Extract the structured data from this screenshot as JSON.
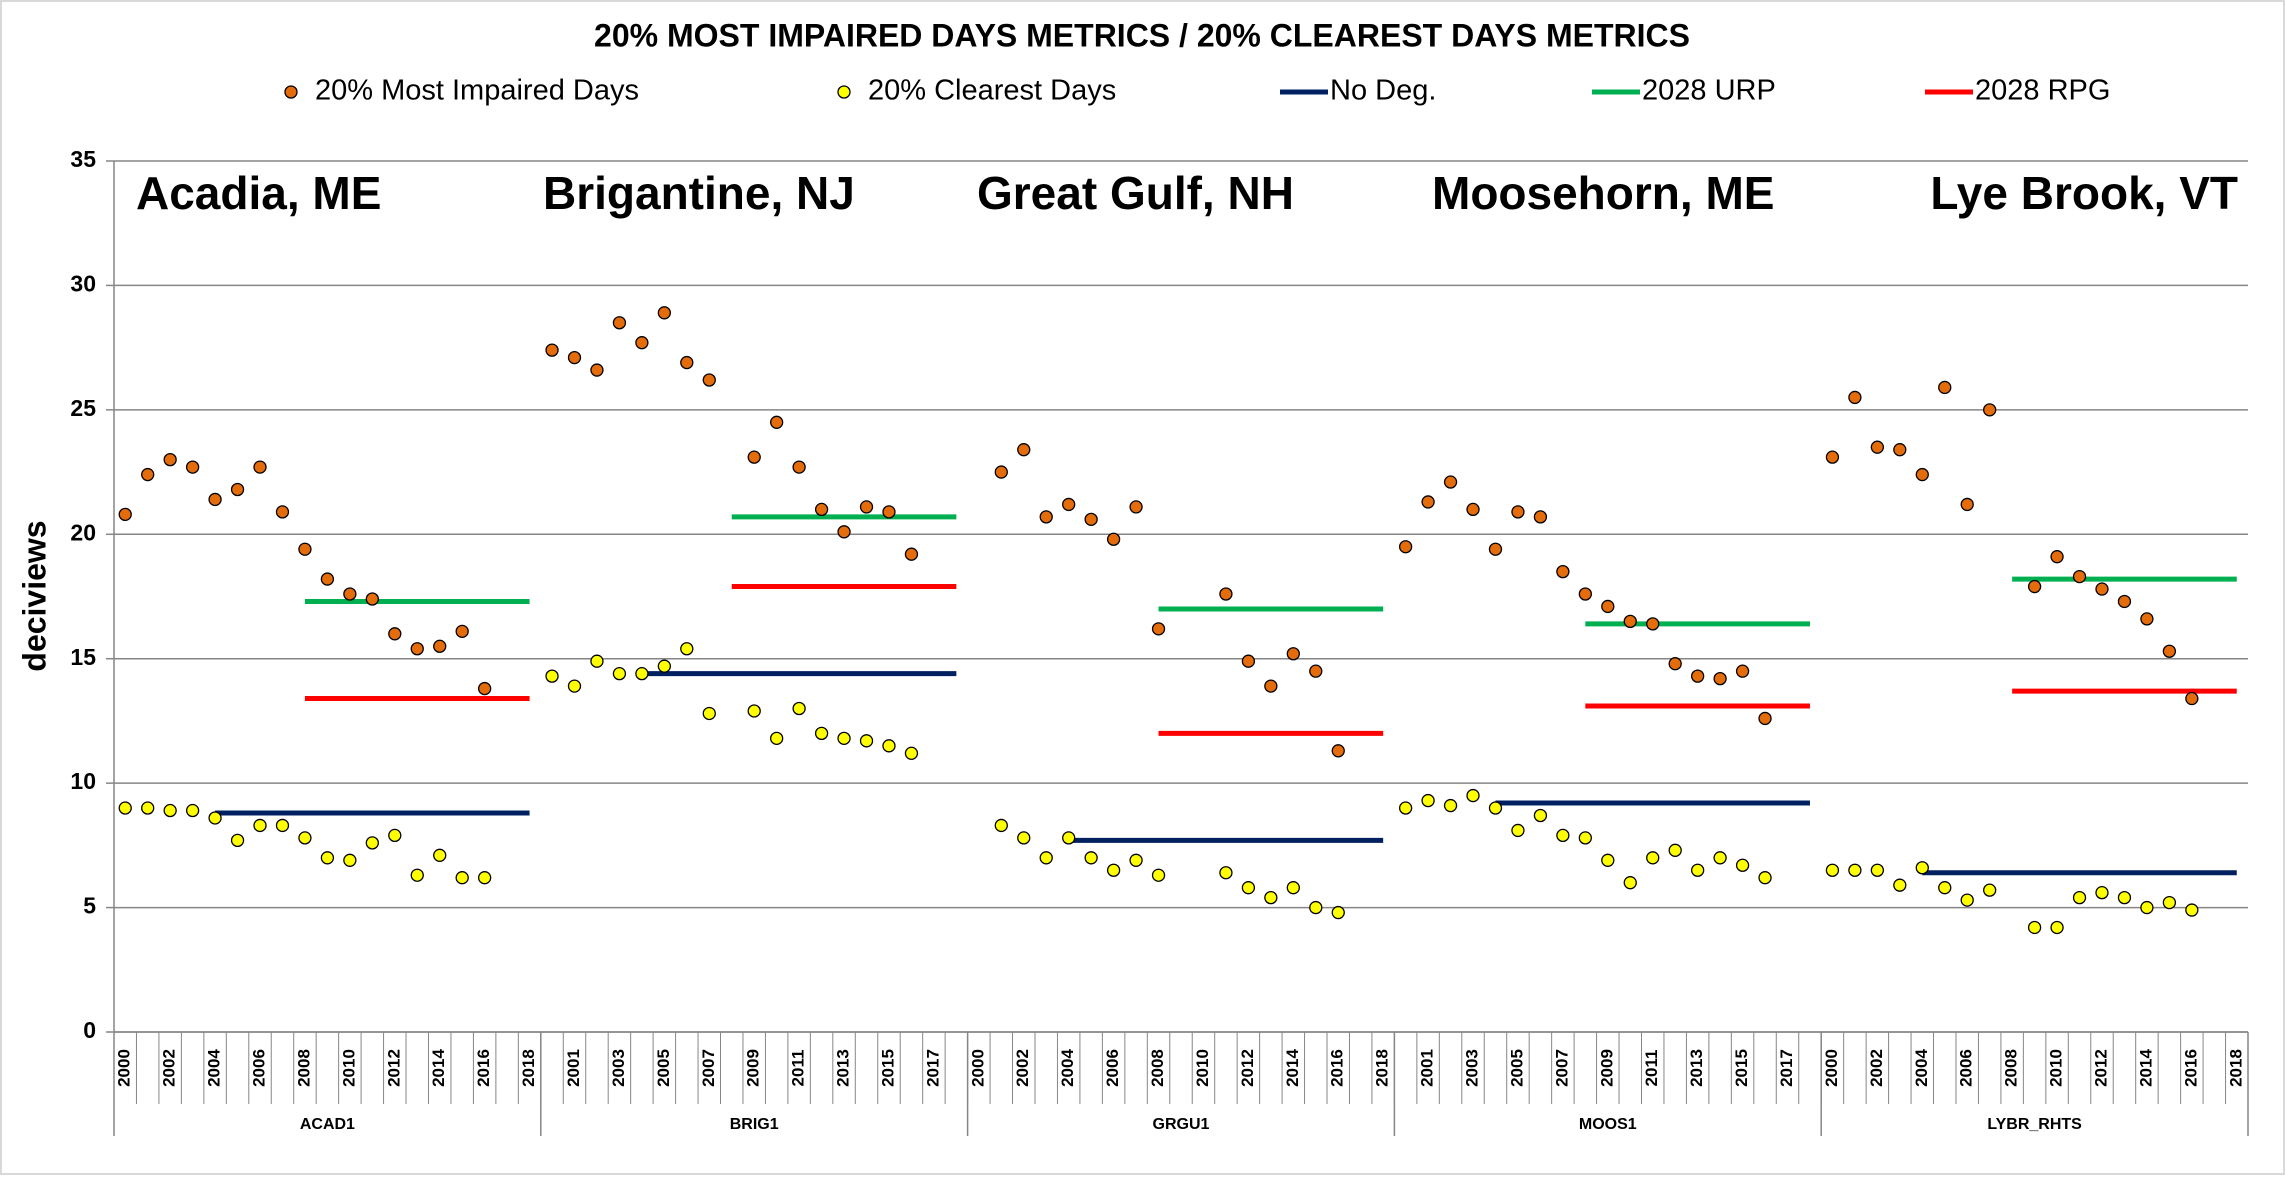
{
  "chart_data": {
    "type": "scatter",
    "title": "20% MOST IMPAIRED DAYS METRICS / 20% CLEAREST DAYS METRICS",
    "y_label": "deciviews",
    "ylim": [
      0,
      35
    ],
    "yticks": [
      0,
      5,
      10,
      15,
      20,
      25,
      30,
      35
    ],
    "grid": true,
    "groups": [
      {
        "name": "ACAD1",
        "site": "Acadia, ME",
        "categories": [
          "2000",
          null,
          "2002",
          null,
          "2004",
          null,
          "2006",
          null,
          "2008",
          null,
          "2010",
          null,
          "2012",
          null,
          "2014",
          null,
          "2016",
          null,
          "2018"
        ]
      },
      {
        "name": "BRIG1",
        "site": "Brigantine, NJ",
        "categories": [
          null,
          "2001",
          null,
          "2003",
          null,
          "2005",
          null,
          "2007",
          null,
          "2009",
          null,
          "2011",
          null,
          "2013",
          null,
          "2015",
          null,
          "2017",
          null
        ]
      },
      {
        "name": "GRGU1",
        "site": "Great Gulf, NH",
        "categories": [
          "2000",
          null,
          "2002",
          null,
          "2004",
          null,
          "2006",
          null,
          "2008",
          null,
          "2010",
          null,
          "2012",
          null,
          "2014",
          null,
          "2016",
          null,
          "2018"
        ]
      },
      {
        "name": "MOOS1",
        "site": "Moosehorn, ME",
        "categories": [
          null,
          "2001",
          null,
          "2003",
          null,
          "2005",
          null,
          "2007",
          null,
          "2009",
          null,
          "2011",
          null,
          "2013",
          null,
          "2015",
          null,
          "2017",
          null
        ]
      },
      {
        "name": "LYBR_RHTS",
        "site": "Lye Brook, VT",
        "categories": [
          "2000",
          null,
          "2002",
          null,
          "2004",
          null,
          "2006",
          null,
          "2008",
          null,
          "2010",
          null,
          "2012",
          null,
          "2014",
          null,
          "2016",
          null,
          "2018"
        ]
      }
    ],
    "series": [
      {
        "name": "20% Most Impaired Days",
        "color": "#e46c0a",
        "style": "marker",
        "values": [
          [
            20.8,
            22.4,
            23.0,
            22.7,
            21.4,
            21.8,
            22.7,
            20.9,
            19.4,
            18.2,
            17.6,
            17.4,
            16.0,
            15.4,
            15.5,
            16.1,
            13.8,
            null,
            null
          ],
          [
            27.4,
            27.1,
            26.6,
            28.5,
            27.7,
            28.9,
            26.9,
            26.2,
            null,
            23.1,
            24.5,
            22.7,
            21.0,
            20.1,
            21.1,
            20.9,
            19.2,
            null,
            null
          ],
          [
            null,
            22.5,
            23.4,
            20.7,
            21.2,
            20.6,
            19.8,
            21.1,
            16.2,
            null,
            null,
            17.6,
            14.9,
            13.9,
            15.2,
            14.5,
            11.3,
            null,
            null
          ],
          [
            19.5,
            21.3,
            22.1,
            21.0,
            19.4,
            20.9,
            20.7,
            18.5,
            17.6,
            17.1,
            16.5,
            16.4,
            14.8,
            14.3,
            14.2,
            14.5,
            12.6,
            null,
            null
          ],
          [
            23.1,
            25.5,
            23.5,
            23.4,
            22.4,
            25.9,
            21.2,
            25.0,
            null,
            17.9,
            19.1,
            18.3,
            17.8,
            17.3,
            16.6,
            15.3,
            13.4,
            null,
            null
          ]
        ]
      },
      {
        "name": "20% Clearest Days",
        "color": "#ffff00",
        "style": "marker",
        "values": [
          [
            9.0,
            9.0,
            8.9,
            8.9,
            8.6,
            7.7,
            8.3,
            8.3,
            7.8,
            7.0,
            6.9,
            7.6,
            7.9,
            6.3,
            7.1,
            6.2,
            6.2,
            null,
            null
          ],
          [
            14.3,
            13.9,
            14.9,
            14.4,
            14.4,
            14.7,
            15.4,
            12.8,
            null,
            12.9,
            11.8,
            13.0,
            12.0,
            11.8,
            11.7,
            11.5,
            11.2,
            null,
            null
          ],
          [
            null,
            8.3,
            7.8,
            7.0,
            7.8,
            7.0,
            6.5,
            6.9,
            6.3,
            null,
            null,
            6.4,
            5.8,
            5.4,
            5.8,
            5.0,
            4.8,
            null,
            null
          ],
          [
            9.0,
            9.3,
            9.1,
            9.5,
            9.0,
            8.1,
            8.7,
            7.9,
            7.8,
            6.9,
            6.0,
            7.0,
            7.3,
            6.5,
            7.0,
            6.7,
            6.2,
            null,
            null
          ],
          [
            6.5,
            6.5,
            6.5,
            5.9,
            6.6,
            5.8,
            5.3,
            5.7,
            null,
            4.2,
            4.2,
            5.4,
            5.6,
            5.4,
            5.0,
            5.2,
            4.9,
            null,
            null
          ]
        ]
      },
      {
        "name": "No Deg.",
        "color": "#002060",
        "style": "line",
        "values": [
          [
            null,
            null,
            null,
            null,
            8.8,
            8.8,
            8.8,
            8.8,
            8.8,
            8.8,
            8.8,
            8.8,
            8.8,
            8.8,
            8.8,
            8.8,
            8.8,
            8.8,
            8.8
          ],
          [
            null,
            null,
            null,
            null,
            14.4,
            14.4,
            14.4,
            14.4,
            14.4,
            14.4,
            14.4,
            14.4,
            14.4,
            14.4,
            14.4,
            14.4,
            14.4,
            14.4,
            14.4
          ],
          [
            null,
            null,
            null,
            null,
            7.7,
            7.7,
            7.7,
            7.7,
            7.7,
            7.7,
            7.7,
            7.7,
            7.7,
            7.7,
            7.7,
            7.7,
            7.7,
            7.7,
            7.7
          ],
          [
            null,
            null,
            null,
            null,
            9.2,
            9.2,
            9.2,
            9.2,
            9.2,
            9.2,
            9.2,
            9.2,
            9.2,
            9.2,
            9.2,
            9.2,
            9.2,
            9.2,
            9.2
          ],
          [
            null,
            null,
            null,
            null,
            6.4,
            6.4,
            6.4,
            6.4,
            6.4,
            6.4,
            6.4,
            6.4,
            6.4,
            6.4,
            6.4,
            6.4,
            6.4,
            6.4,
            6.4
          ]
        ]
      },
      {
        "name": "2028 URP",
        "color": "#00b050",
        "style": "line",
        "values": [
          [
            null,
            null,
            null,
            null,
            null,
            null,
            null,
            null,
            17.3,
            17.3,
            17.3,
            17.3,
            17.3,
            17.3,
            17.3,
            17.3,
            17.3,
            17.3,
            17.3
          ],
          [
            null,
            null,
            null,
            null,
            null,
            null,
            null,
            null,
            20.7,
            20.7,
            20.7,
            20.7,
            20.7,
            20.7,
            20.7,
            20.7,
            20.7,
            20.7,
            20.7
          ],
          [
            null,
            null,
            null,
            null,
            null,
            null,
            null,
            null,
            17.0,
            17.0,
            17.0,
            17.0,
            17.0,
            17.0,
            17.0,
            17.0,
            17.0,
            17.0,
            17.0
          ],
          [
            null,
            null,
            null,
            null,
            null,
            null,
            null,
            null,
            16.4,
            16.4,
            16.4,
            16.4,
            16.4,
            16.4,
            16.4,
            16.4,
            16.4,
            16.4,
            16.4
          ],
          [
            null,
            null,
            null,
            null,
            null,
            null,
            null,
            null,
            18.2,
            18.2,
            18.2,
            18.2,
            18.2,
            18.2,
            18.2,
            18.2,
            18.2,
            18.2,
            18.2
          ]
        ]
      },
      {
        "name": "2028 RPG",
        "color": "#ff0000",
        "style": "line",
        "values": [
          [
            null,
            null,
            null,
            null,
            null,
            null,
            null,
            null,
            13.4,
            13.4,
            13.4,
            13.4,
            13.4,
            13.4,
            13.4,
            13.4,
            13.4,
            13.4,
            13.4
          ],
          [
            null,
            null,
            null,
            null,
            null,
            null,
            null,
            null,
            17.9,
            17.9,
            17.9,
            17.9,
            17.9,
            17.9,
            17.9,
            17.9,
            17.9,
            17.9,
            17.9
          ],
          [
            null,
            null,
            null,
            null,
            null,
            null,
            null,
            null,
            12.0,
            12.0,
            12.0,
            12.0,
            12.0,
            12.0,
            12.0,
            12.0,
            12.0,
            12.0,
            12.0
          ],
          [
            null,
            null,
            null,
            null,
            null,
            null,
            null,
            null,
            13.1,
            13.1,
            13.1,
            13.1,
            13.1,
            13.1,
            13.1,
            13.1,
            13.1,
            13.1,
            13.1
          ],
          [
            null,
            null,
            null,
            null,
            null,
            null,
            null,
            null,
            13.7,
            13.7,
            13.7,
            13.7,
            13.7,
            13.7,
            13.7,
            13.7,
            13.7,
            13.7,
            13.7
          ]
        ]
      }
    ]
  }
}
